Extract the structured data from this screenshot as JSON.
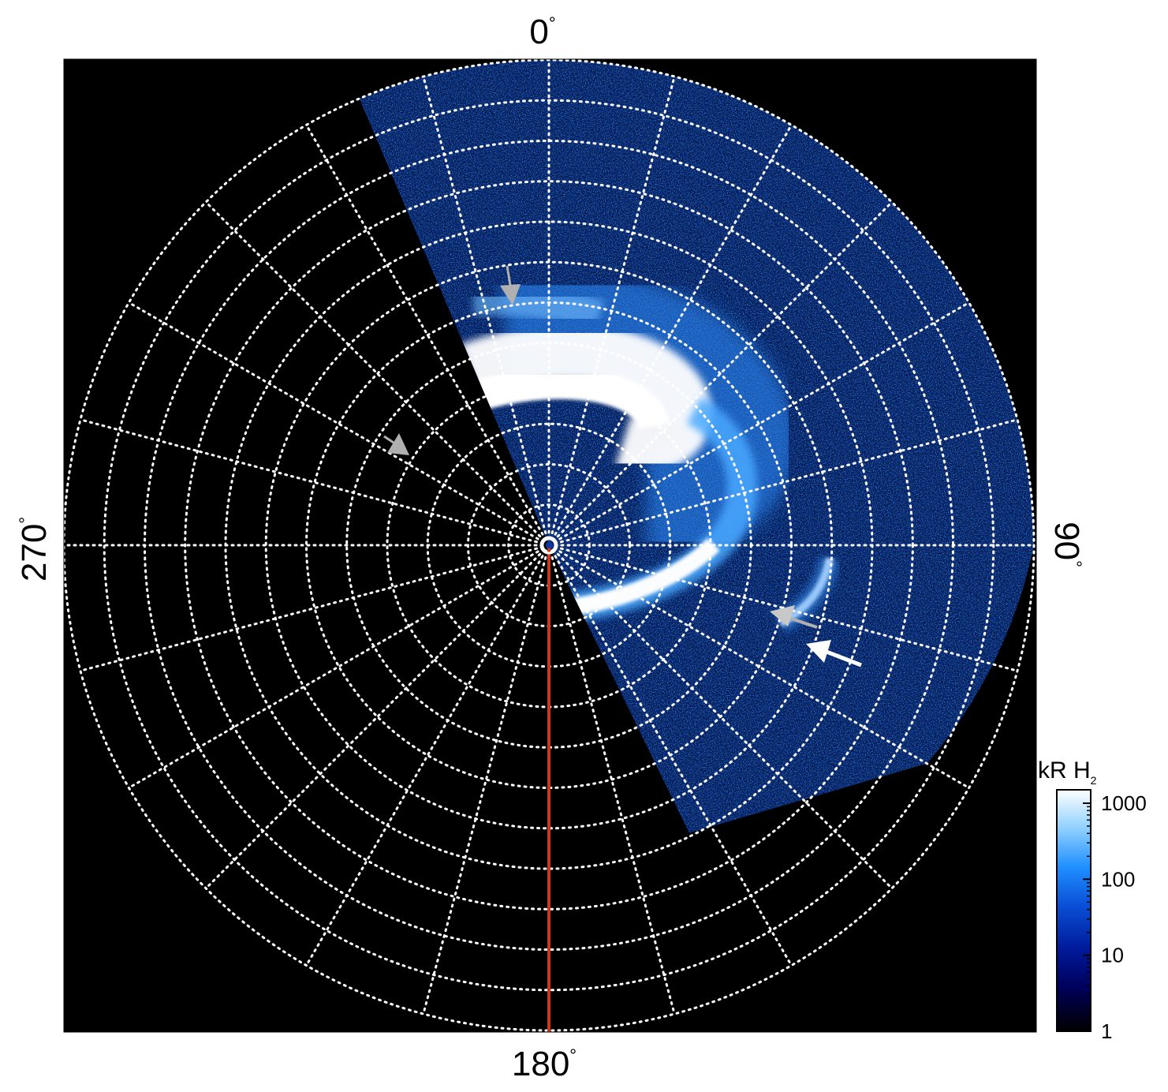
{
  "chart_data": {
    "type": "heatmap",
    "projection": "polar",
    "angle_labels": {
      "top": "0",
      "right": "90",
      "bottom": "180",
      "left": "270",
      "unit": "°"
    },
    "grid": "dotted white",
    "grid_rings": 12,
    "grid_spokes_every_deg": 15,
    "colormap": [
      "#000000",
      "#00007a",
      "#0a3fc0",
      "#1f8fff",
      "#9fd6ff",
      "#ffffff"
    ],
    "colorbar": {
      "label_main": "kR H",
      "label_sub": "2",
      "scale": "log",
      "range": [
        1,
        1500
      ],
      "ticks": [
        {
          "label": "1",
          "value": 1
        },
        {
          "label": "10",
          "value": 10
        },
        {
          "label": "100",
          "value": 100
        },
        {
          "label": "1000",
          "value": 1000
        }
      ]
    },
    "reference_line": {
      "color": "#c8381f",
      "angle_deg": 180
    },
    "pole_marker": "circle"
  },
  "colors": {
    "background": "#000000",
    "grid": "#ffffff",
    "arrow_gray": "#b0b0b0",
    "arrow_white": "#ffffff",
    "reference_line": "#c8381f"
  }
}
